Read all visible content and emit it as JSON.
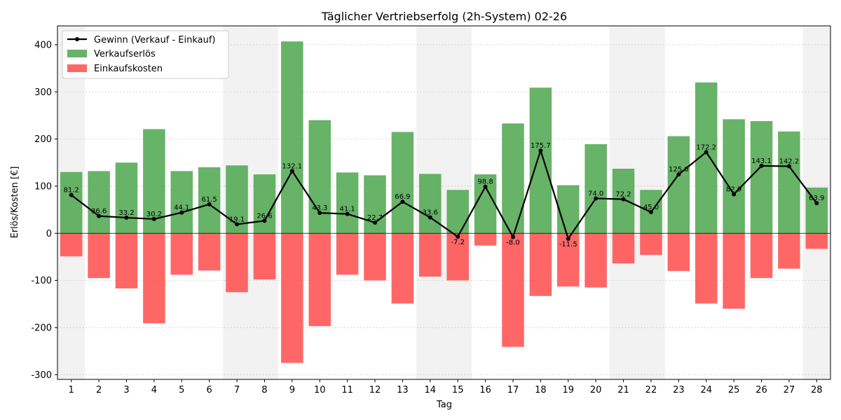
{
  "chart_data": {
    "type": "bar",
    "title": "Täglicher Vertriebserfolg (2h-System) 02-26",
    "xlabel": "Tag",
    "ylabel": "Erlös/Kosten [€]",
    "ylim": [
      -310,
      440
    ],
    "yticks": [
      -300,
      -200,
      -100,
      0,
      100,
      200,
      300,
      400
    ],
    "grid": "horizontal dotted",
    "legend_position": "top-left",
    "shaded_days": [
      1,
      7,
      8,
      14,
      15,
      21,
      22,
      28
    ],
    "categories": [
      "1",
      "2",
      "3",
      "4",
      "5",
      "6",
      "7",
      "8",
      "9",
      "10",
      "11",
      "12",
      "13",
      "14",
      "15",
      "16",
      "17",
      "18",
      "19",
      "20",
      "21",
      "22",
      "23",
      "24",
      "25",
      "26",
      "27",
      "28"
    ],
    "series": [
      {
        "name": "Verkaufserlös",
        "kind": "bar",
        "color": "#4ca64c",
        "values": [
          130,
          132,
          150,
          221,
          132,
          140,
          144,
          125,
          407,
          240,
          129,
          123,
          215,
          126,
          92,
          125,
          233,
          309,
          102,
          189,
          137,
          92,
          206,
          320,
          242,
          238,
          216,
          97
        ]
      },
      {
        "name": "Einkaufskosten",
        "kind": "bar",
        "color": "#ff4c4c",
        "values": [
          -49,
          -95,
          -117,
          -191,
          -88,
          -79,
          -125,
          -98,
          -275,
          -197,
          -88,
          -100,
          -149,
          -92,
          -100,
          -26,
          -241,
          -133,
          -113,
          -115,
          -64,
          -46,
          -80,
          -149,
          -160,
          -95,
          -75,
          -33
        ]
      },
      {
        "name": "Gewinn (Verkauf - Einkauf)",
        "kind": "line",
        "color": "#000000",
        "values": [
          81.2,
          36.6,
          33.2,
          30.2,
          44.1,
          61.5,
          19.1,
          26.6,
          132.1,
          43.3,
          41.1,
          22.7,
          66.9,
          33.6,
          -7.2,
          98.8,
          -8.0,
          175.7,
          -11.5,
          74.0,
          72.2,
          45.0,
          125.0,
          172.2,
          82.9,
          143.1,
          142.2,
          63.9
        ],
        "labels": [
          "81.2",
          "36.6",
          "33.2",
          "30.2",
          "44.1",
          "61.5",
          "19.1",
          "26.6",
          "132.1",
          "43.3",
          "41.1",
          "22.7",
          "66.9",
          "33.6",
          "-7.2",
          "98.8",
          "-8.0",
          "175.7",
          "-11.5",
          "74.0",
          "72.2",
          "45.0",
          "125.0",
          "172.2",
          "82.9",
          "143.1",
          "142.2",
          "63.9"
        ]
      }
    ]
  }
}
